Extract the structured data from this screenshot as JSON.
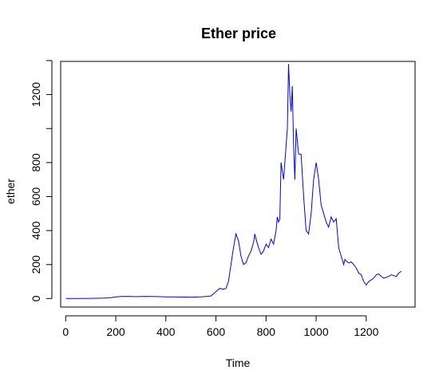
{
  "chart_data": {
    "type": "line",
    "title": "Ether price",
    "xlabel": "Time",
    "ylabel": "ether",
    "xlim": [
      -20,
      1395
    ],
    "ylim": [
      -50,
      1395
    ],
    "xticks": [
      0,
      200,
      400,
      600,
      800,
      1000,
      1200
    ],
    "yticks": [
      0,
      200,
      400,
      600,
      800,
      1200
    ],
    "grid": false,
    "legend": "none",
    "colors": {
      "line": "#0000ff",
      "axis": "#000000",
      "background": "#ffffff"
    },
    "series": [
      {
        "x": [
          1,
          50,
          100,
          150,
          180,
          200,
          220,
          250,
          280,
          300,
          320,
          350,
          380,
          400,
          450,
          500,
          540,
          560,
          580,
          600,
          615,
          630,
          640,
          650,
          660,
          670,
          680,
          690,
          700,
          710,
          720,
          730,
          740,
          750,
          755,
          760,
          770,
          780,
          790,
          800,
          810,
          820,
          830,
          840,
          845,
          850,
          855,
          860,
          870,
          880,
          885,
          890,
          895,
          900,
          905,
          910,
          915,
          920,
          930,
          940,
          950,
          960,
          970,
          980,
          990,
          1000,
          1010,
          1020,
          1030,
          1040,
          1050,
          1060,
          1070,
          1080,
          1090,
          1100,
          1110,
          1115,
          1120,
          1130,
          1140,
          1150,
          1160,
          1170,
          1180,
          1190,
          1200,
          1210,
          1220,
          1230,
          1240,
          1250,
          1260,
          1270,
          1280,
          1290,
          1300,
          1310,
          1320,
          1330,
          1340
        ],
        "y": [
          0,
          0,
          1,
          2,
          5,
          10,
          12,
          13,
          11,
          12,
          13,
          12,
          11,
          10,
          9,
          8,
          10,
          12,
          15,
          40,
          60,
          55,
          60,
          100,
          200,
          300,
          380,
          340,
          250,
          200,
          210,
          250,
          280,
          330,
          380,
          350,
          300,
          260,
          280,
          320,
          300,
          350,
          320,
          400,
          480,
          450,
          470,
          800,
          700,
          900,
          1000,
          1380,
          1200,
          1100,
          1250,
          900,
          700,
          1000,
          850,
          850,
          600,
          400,
          380,
          500,
          700,
          800,
          700,
          550,
          500,
          450,
          420,
          480,
          450,
          470,
          300,
          250,
          200,
          230,
          220,
          210,
          215,
          200,
          180,
          150,
          140,
          100,
          80,
          100,
          110,
          120,
          140,
          145,
          130,
          120,
          125,
          130,
          140,
          135,
          130,
          150,
          160
        ]
      }
    ]
  }
}
